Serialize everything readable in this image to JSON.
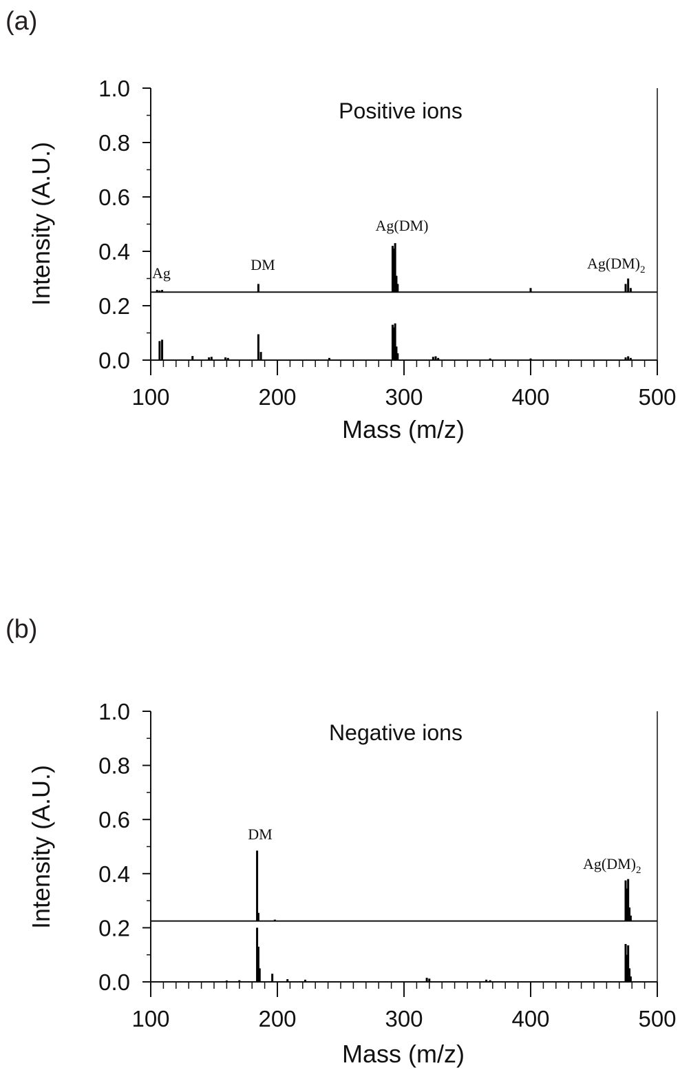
{
  "panels": [
    {
      "label": "(a)",
      "title": "Positive ions",
      "xlabel": "Mass (m/z)",
      "ylabel": "Intensity (A.U.)",
      "xticks": [
        "100",
        "200",
        "300",
        "400",
        "500"
      ],
      "yticks": [
        "0.0",
        "0.2",
        "0.4",
        "0.6",
        "0.8",
        "1.0"
      ],
      "annotations": [
        {
          "text": "Ag",
          "sub": ""
        },
        {
          "text": "DM",
          "sub": ""
        },
        {
          "text": "Ag(DM)",
          "sub": ""
        },
        {
          "text": "Ag(DM)",
          "sub": "2"
        }
      ]
    },
    {
      "label": "(b)",
      "title": "Negative ions",
      "xlabel": "Mass (m/z)",
      "ylabel": "Intensity (A.U.)",
      "xticks": [
        "100",
        "200",
        "300",
        "400",
        "500"
      ],
      "yticks": [
        "0.0",
        "0.2",
        "0.4",
        "0.6",
        "0.8",
        "1.0"
      ],
      "annotations": [
        {
          "text": "DM",
          "sub": ""
        },
        {
          "text": "Ag(DM)",
          "sub": "2"
        }
      ]
    }
  ],
  "chart_data": [
    {
      "type": "line",
      "title": "Positive ions",
      "xlabel": "Mass (m/z)",
      "ylabel": "Intensity (A.U.)",
      "xlim": [
        100,
        500
      ],
      "ylim": [
        0.0,
        1.0
      ],
      "grid": false,
      "series": [
        {
          "baseline": 0.25,
          "peaks": [
            {
              "x": 105,
              "y": 0.008
            },
            {
              "x": 107,
              "y": 0.006
            },
            {
              "x": 109,
              "y": 0.008
            },
            {
              "x": 185,
              "y": 0.03
            },
            {
              "x": 291,
              "y": 0.17
            },
            {
              "x": 292,
              "y": 0.16
            },
            {
              "x": 293,
              "y": 0.18
            },
            {
              "x": 294,
              "y": 0.06
            },
            {
              "x": 295,
              "y": 0.03
            },
            {
              "x": 400,
              "y": 0.015
            },
            {
              "x": 475,
              "y": 0.03
            },
            {
              "x": 477,
              "y": 0.05
            },
            {
              "x": 479,
              "y": 0.015
            }
          ]
        },
        {
          "baseline": 0.0,
          "peaks": [
            {
              "x": 107,
              "y": 0.07
            },
            {
              "x": 109,
              "y": 0.075
            },
            {
              "x": 133,
              "y": 0.015
            },
            {
              "x": 146,
              "y": 0.01
            },
            {
              "x": 148,
              "y": 0.012
            },
            {
              "x": 159,
              "y": 0.01
            },
            {
              "x": 161,
              "y": 0.008
            },
            {
              "x": 185,
              "y": 0.095
            },
            {
              "x": 187,
              "y": 0.03
            },
            {
              "x": 241,
              "y": 0.008
            },
            {
              "x": 291,
              "y": 0.13
            },
            {
              "x": 292,
              "y": 0.12
            },
            {
              "x": 293,
              "y": 0.135
            },
            {
              "x": 294,
              "y": 0.05
            },
            {
              "x": 295,
              "y": 0.025
            },
            {
              "x": 323,
              "y": 0.012
            },
            {
              "x": 325,
              "y": 0.014
            },
            {
              "x": 327,
              "y": 0.008
            },
            {
              "x": 368,
              "y": 0.006
            },
            {
              "x": 400,
              "y": 0.006
            },
            {
              "x": 475,
              "y": 0.01
            },
            {
              "x": 477,
              "y": 0.014
            },
            {
              "x": 479,
              "y": 0.008
            }
          ]
        }
      ]
    },
    {
      "type": "line",
      "title": "Negative ions",
      "xlabel": "Mass (m/z)",
      "ylabel": "Intensity (A.U.)",
      "xlim": [
        100,
        500
      ],
      "ylim": [
        0.0,
        1.0
      ],
      "grid": false,
      "series": [
        {
          "baseline": 0.225,
          "peaks": [
            {
              "x": 184,
              "y": 0.26
            },
            {
              "x": 185,
              "y": 0.03
            },
            {
              "x": 198,
              "y": 0.005
            },
            {
              "x": 475,
              "y": 0.15
            },
            {
              "x": 476,
              "y": 0.12
            },
            {
              "x": 477,
              "y": 0.155
            },
            {
              "x": 478,
              "y": 0.05
            },
            {
              "x": 479,
              "y": 0.02
            }
          ]
        },
        {
          "baseline": 0.0,
          "peaks": [
            {
              "x": 160,
              "y": 0.005
            },
            {
              "x": 170,
              "y": 0.006
            },
            {
              "x": 184,
              "y": 0.2
            },
            {
              "x": 185,
              "y": 0.13
            },
            {
              "x": 186,
              "y": 0.05
            },
            {
              "x": 196,
              "y": 0.03
            },
            {
              "x": 208,
              "y": 0.01
            },
            {
              "x": 222,
              "y": 0.008
            },
            {
              "x": 318,
              "y": 0.015
            },
            {
              "x": 320,
              "y": 0.012
            },
            {
              "x": 365,
              "y": 0.008
            },
            {
              "x": 368,
              "y": 0.006
            },
            {
              "x": 475,
              "y": 0.14
            },
            {
              "x": 476,
              "y": 0.1
            },
            {
              "x": 477,
              "y": 0.135
            },
            {
              "x": 478,
              "y": 0.05
            },
            {
              "x": 479,
              "y": 0.02
            }
          ]
        }
      ]
    }
  ]
}
